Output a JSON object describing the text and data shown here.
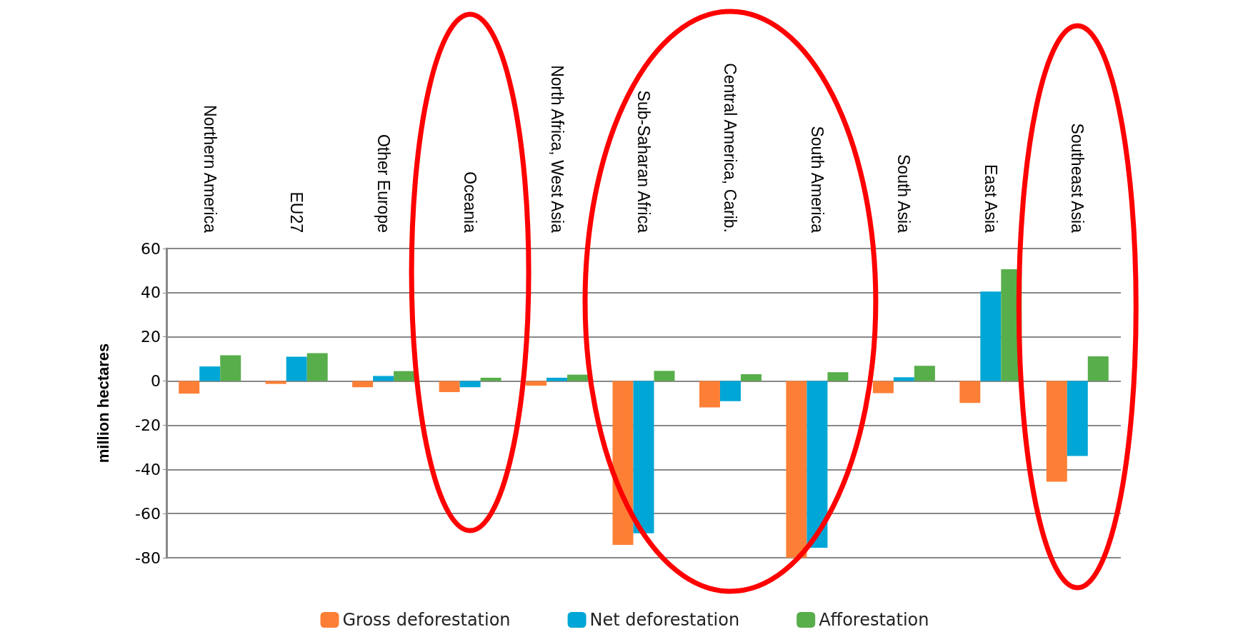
{
  "chart_data": {
    "type": "bar",
    "categories": [
      "Northern America",
      "EU27",
      "Other Europe",
      "Oceania",
      "North Africa, West Asia",
      "Sub-Saharan Africa",
      "Central America, Carib.",
      "South America",
      "South Asia",
      "East Asia",
      "Southeast Asia"
    ],
    "series": [
      {
        "name": "Gross deforestation",
        "color": "#fd7f36",
        "values": [
          -5.7,
          -1.3,
          -2.8,
          -5,
          -2.1,
          -74.2,
          -11.9,
          -80,
          -5.5,
          -9.9,
          -45.6
        ]
      },
      {
        "name": "Net deforestation",
        "color": "#00a6d6",
        "values": [
          6.6,
          11,
          2.3,
          -2.8,
          1.5,
          -68.9,
          -9.1,
          -75.5,
          1.7,
          40.5,
          -33.9
        ]
      },
      {
        "name": "Afforestation",
        "color": "#58ae4b",
        "values": [
          11.7,
          12.6,
          4.5,
          1.5,
          2.9,
          4.6,
          3.1,
          4,
          6.9,
          50.6,
          11.2
        ]
      }
    ],
    "ylabel": "million hectares",
    "ylim": [
      -80,
      60
    ],
    "yticks": [
      -80,
      -60,
      -40,
      -20,
      0,
      20,
      40,
      60
    ],
    "grid": "y",
    "legend": "bottom"
  }
}
